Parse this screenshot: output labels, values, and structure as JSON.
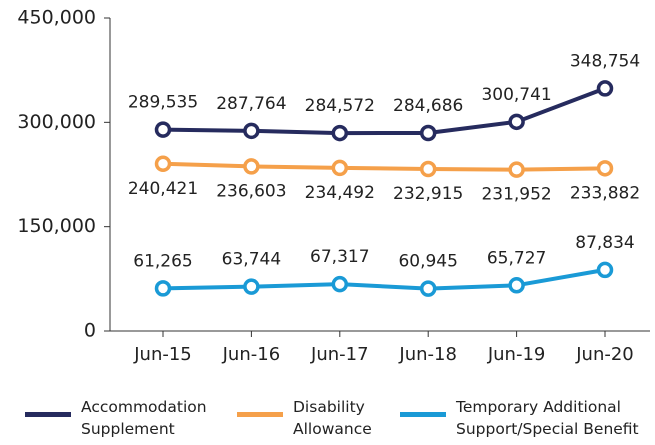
{
  "chart_data": {
    "type": "line",
    "categories": [
      "Jun-15",
      "Jun-16",
      "Jun-17",
      "Jun-18",
      "Jun-19",
      "Jun-20"
    ],
    "series": [
      {
        "name": "Accommodation Supplement",
        "color": "#262b5e",
        "values": [
          289535,
          287764,
          284572,
          284686,
          300741,
          348754
        ],
        "value_labels": [
          "289,535",
          "287,764",
          "284,572",
          "284,686",
          "300,741",
          "348,754"
        ]
      },
      {
        "name": "Disability Allowance",
        "color": "#f5a04a",
        "values": [
          240421,
          236603,
          234492,
          232915,
          231952,
          233882
        ],
        "value_labels": [
          "240,421",
          "236,603",
          "234,492",
          "232,915",
          "231,952",
          "233,882"
        ]
      },
      {
        "name": "Temporary Additional Support/Special Benefit",
        "color": "#1a9ad6",
        "values": [
          61265,
          63744,
          67317,
          60945,
          65727,
          87834
        ],
        "value_labels": [
          "61,265",
          "63,744",
          "67,317",
          "60,945",
          "65,727",
          "87,834"
        ]
      }
    ],
    "ylim": [
      0,
      450000
    ],
    "yticks": [
      0,
      {
        "value": 150000,
        "label": "150,000"
      },
      {
        "value": 300000,
        "label": "300,000"
      },
      {
        "value": 450000,
        "label": "450,000"
      }
    ],
    "grid": false
  }
}
